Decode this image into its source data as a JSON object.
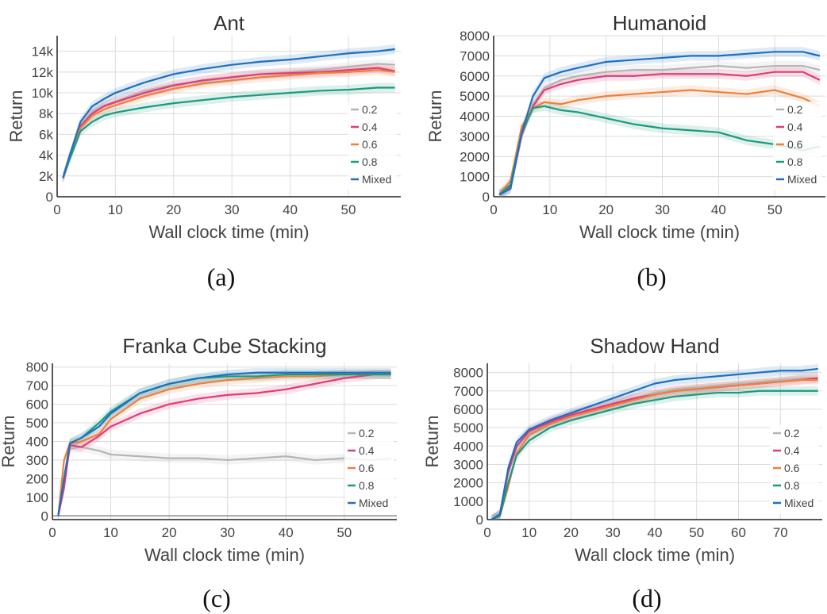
{
  "colors": {
    "0.2": "#b5b5b5",
    "0.4": "#e03c78",
    "0.6": "#ee7f3b",
    "0.8": "#1b9a7f",
    "Mixed": "#1f6fbf",
    "grid": "#dcdcdc",
    "axis": "#222222"
  },
  "chart_data": [
    {
      "type": "line",
      "title": "Ant",
      "caption": "(a)",
      "xlabel": "Wall clock time (min)",
      "ylabel": "Return",
      "xlim": [
        0,
        59
      ],
      "ylim": [
        0,
        15500
      ],
      "xticks": [
        0,
        10,
        20,
        30,
        40,
        50
      ],
      "xtick_labels": [
        "0",
        "10",
        "20",
        "30",
        "40",
        "50"
      ],
      "yticks": [
        0,
        2000,
        4000,
        6000,
        8000,
        10000,
        12000,
        14000
      ],
      "ytick_labels": [
        "0",
        "2k",
        "4k",
        "6k",
        "8k",
        "10k",
        "12k",
        "14k"
      ],
      "legend": [
        "0.2",
        "0.4",
        "0.6",
        "0.8",
        "Mixed"
      ],
      "legend_position": "bottom-right",
      "x": [
        1,
        2,
        4,
        6,
        8,
        10,
        15,
        20,
        25,
        30,
        35,
        40,
        45,
        50,
        55,
        58
      ],
      "series": [
        {
          "name": "0.2",
          "values": [
            1800,
            3600,
            6800,
            8200,
            8800,
            9200,
            10200,
            10800,
            11100,
            11500,
            11800,
            12000,
            12200,
            12500,
            12800,
            12700
          ]
        },
        {
          "name": "0.4",
          "values": [
            1800,
            3600,
            6800,
            8000,
            8700,
            9100,
            10000,
            10700,
            11200,
            11500,
            11800,
            11900,
            12000,
            12200,
            12400,
            12100
          ]
        },
        {
          "name": "0.6",
          "values": [
            1800,
            3500,
            6600,
            7800,
            8400,
            8800,
            9700,
            10400,
            10900,
            11200,
            11500,
            11700,
            11900,
            12000,
            12200,
            12000
          ]
        },
        {
          "name": "0.8",
          "values": [
            1800,
            3400,
            6300,
            7200,
            7800,
            8100,
            8600,
            9000,
            9300,
            9600,
            9800,
            10000,
            10200,
            10300,
            10500,
            10500
          ]
        },
        {
          "name": "Mixed",
          "values": [
            1800,
            3700,
            7200,
            8700,
            9400,
            10000,
            11000,
            11800,
            12300,
            12700,
            13000,
            13200,
            13500,
            13800,
            14000,
            14200
          ]
        }
      ]
    },
    {
      "type": "line",
      "title": "Humanoid",
      "caption": "(b)",
      "xlabel": "Wall clock time (min)",
      "ylabel": "Return",
      "xlim": [
        0,
        59
      ],
      "ylim": [
        0,
        8000
      ],
      "xticks": [
        0,
        10,
        20,
        30,
        40,
        50
      ],
      "xtick_labels": [
        "0",
        "10",
        "20",
        "30",
        "40",
        "50"
      ],
      "yticks": [
        0,
        1000,
        2000,
        3000,
        4000,
        5000,
        6000,
        7000,
        8000
      ],
      "ytick_labels": [
        "0",
        "1000",
        "2000",
        "3000",
        "4000",
        "5000",
        "6000",
        "7000",
        "8000"
      ],
      "legend": [
        "0.2",
        "0.4",
        "0.6",
        "0.8",
        "Mixed"
      ],
      "legend_position": "bottom-right",
      "x": [
        1,
        3,
        5,
        7,
        9,
        12,
        15,
        20,
        25,
        30,
        35,
        40,
        45,
        50,
        55,
        58
      ],
      "series": [
        {
          "name": "0.2",
          "values": [
            100,
            400,
            3000,
            4600,
            5400,
            5800,
            6000,
            6200,
            6300,
            6300,
            6400,
            6500,
            6400,
            6500,
            6500,
            6300
          ]
        },
        {
          "name": "0.4",
          "values": [
            100,
            500,
            3100,
            4500,
            5300,
            5600,
            5800,
            6000,
            6000,
            6100,
            6100,
            6100,
            6000,
            6200,
            6200,
            5800
          ]
        },
        {
          "name": "0.6",
          "values": [
            100,
            800,
            3500,
            4400,
            4700,
            4600,
            4800,
            5000,
            5100,
            5200,
            5300,
            5200,
            5100,
            5300,
            4900,
            4500
          ]
        },
        {
          "name": "0.8",
          "values": [
            100,
            600,
            3200,
            4400,
            4500,
            4300,
            4200,
            3900,
            3600,
            3400,
            3300,
            3200,
            2800,
            2600,
            2300,
            2500
          ]
        },
        {
          "name": "Mixed",
          "values": [
            100,
            400,
            3200,
            5000,
            5900,
            6200,
            6400,
            6700,
            6800,
            6900,
            7000,
            7000,
            7100,
            7200,
            7200,
            7000
          ]
        }
      ]
    },
    {
      "type": "line",
      "title": "Franka Cube Stacking",
      "caption": "(c)",
      "xlabel": "Wall clock time (min)",
      "ylabel": "Return",
      "xlim": [
        0,
        59
      ],
      "ylim": [
        -20,
        820
      ],
      "xticks": [
        0,
        10,
        20,
        30,
        40,
        50
      ],
      "xtick_labels": [
        "0",
        "10",
        "20",
        "30",
        "40",
        "50"
      ],
      "yticks": [
        0,
        100,
        200,
        300,
        400,
        500,
        600,
        700,
        800
      ],
      "ytick_labels": [
        "0",
        "100",
        "200",
        "300",
        "400",
        "500",
        "600",
        "700",
        "800"
      ],
      "legend": [
        "0.2",
        "0.4",
        "0.6",
        "0.8",
        "Mixed"
      ],
      "legend_position": "bottom-right",
      "x": [
        1,
        2,
        3,
        5,
        8,
        10,
        15,
        20,
        25,
        30,
        35,
        40,
        45,
        50,
        55,
        58
      ],
      "series": [
        {
          "name": "0.2",
          "values": [
            0,
            200,
            360,
            370,
            350,
            330,
            320,
            310,
            310,
            300,
            310,
            320,
            300,
            310,
            300,
            310
          ]
        },
        {
          "name": "0.4",
          "values": [
            0,
            150,
            380,
            370,
            430,
            480,
            550,
            600,
            630,
            650,
            660,
            680,
            710,
            740,
            760,
            760
          ]
        },
        {
          "name": "0.6",
          "values": [
            0,
            300,
            390,
            400,
            440,
            520,
            630,
            680,
            710,
            730,
            740,
            750,
            750,
            760,
            760,
            760
          ]
        },
        {
          "name": "0.8",
          "values": [
            0,
            200,
            390,
            420,
            500,
            560,
            660,
            710,
            740,
            750,
            750,
            760,
            760,
            760,
            760,
            760
          ]
        },
        {
          "name": "Mixed",
          "values": [
            0,
            200,
            390,
            420,
            480,
            550,
            660,
            710,
            740,
            760,
            770,
            770,
            770,
            770,
            770,
            770
          ]
        }
      ]
    },
    {
      "type": "line",
      "title": "Shadow Hand",
      "caption": "(d)",
      "xlabel": "Wall clock time (min)",
      "ylabel": "Return",
      "xlim": [
        0,
        80
      ],
      "ylim": [
        0,
        8500
      ],
      "xticks": [
        0,
        10,
        20,
        30,
        40,
        50,
        60,
        70
      ],
      "xtick_labels": [
        "0",
        "10",
        "20",
        "30",
        "40",
        "50",
        "60",
        "70"
      ],
      "yticks": [
        0,
        1000,
        2000,
        3000,
        4000,
        5000,
        6000,
        7000,
        8000
      ],
      "ytick_labels": [
        "0",
        "1000",
        "2000",
        "3000",
        "4000",
        "5000",
        "6000",
        "7000",
        "8000"
      ],
      "legend": [
        "0.2",
        "0.4",
        "0.6",
        "0.8",
        "Mixed"
      ],
      "legend_position": "bottom-right",
      "x": [
        1,
        3,
        5,
        7,
        10,
        15,
        20,
        25,
        30,
        35,
        40,
        45,
        50,
        55,
        60,
        65,
        70,
        75,
        79
      ],
      "series": [
        {
          "name": "0.2",
          "values": [
            0,
            300,
            2500,
            3900,
            4700,
            5300,
            5700,
            6000,
            6300,
            6600,
            6900,
            7100,
            7200,
            7300,
            7400,
            7500,
            7600,
            7700,
            7700
          ]
        },
        {
          "name": "0.4",
          "values": [
            0,
            300,
            2600,
            4000,
            4800,
            5300,
            5700,
            6000,
            6300,
            6600,
            6800,
            7000,
            7100,
            7200,
            7300,
            7400,
            7500,
            7600,
            7700
          ]
        },
        {
          "name": "0.6",
          "values": [
            0,
            200,
            1800,
            3600,
            4600,
            5200,
            5600,
            5900,
            6200,
            6500,
            6800,
            7000,
            7100,
            7200,
            7300,
            7400,
            7500,
            7600,
            7600
          ]
        },
        {
          "name": "0.8",
          "values": [
            0,
            200,
            2000,
            3500,
            4300,
            5000,
            5400,
            5700,
            6000,
            6300,
            6500,
            6700,
            6800,
            6900,
            6900,
            7000,
            7000,
            7000,
            7000
          ]
        },
        {
          "name": "Mixed",
          "values": [
            0,
            300,
            2800,
            4200,
            4900,
            5400,
            5800,
            6200,
            6600,
            7000,
            7400,
            7600,
            7700,
            7800,
            7900,
            8000,
            8100,
            8100,
            8200
          ]
        }
      ]
    }
  ]
}
